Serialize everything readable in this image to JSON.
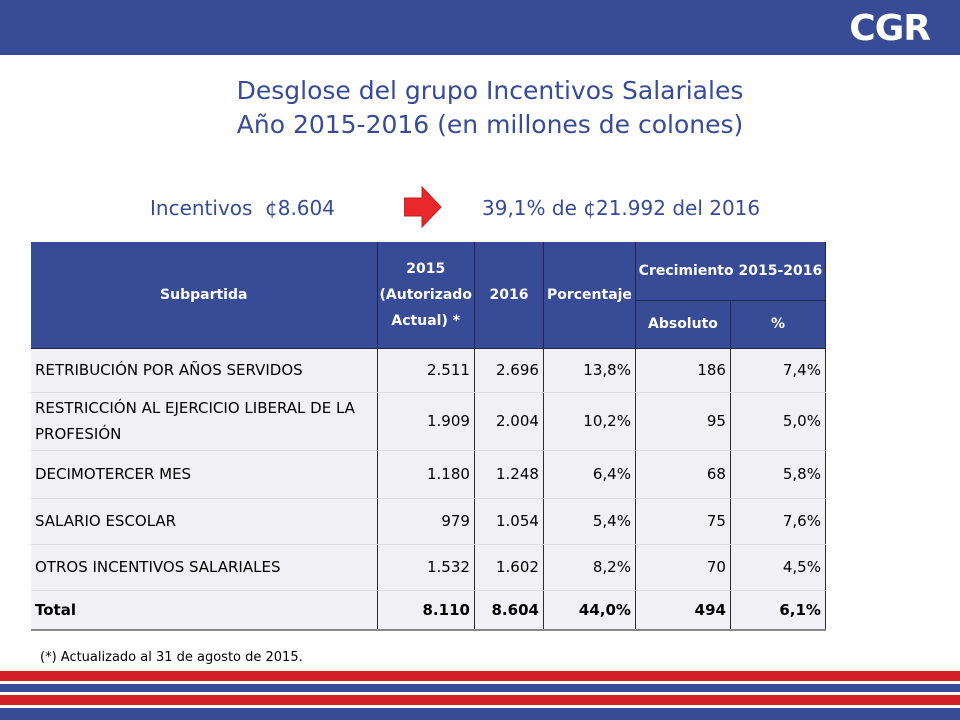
{
  "brand": {
    "logo_text": "CGR"
  },
  "title": {
    "line1": "Desglose del grupo Incentivos Salariales",
    "line2": "Año 2015-2016 (en millones de colones)"
  },
  "summary": {
    "label": "Incentivos",
    "value": "¢8.604",
    "description": "39,1% de ¢21.992 del 2016",
    "arrow_icon": "right-arrow-icon",
    "arrow_color": "#e8282a"
  },
  "table": {
    "headers": {
      "subpartida": "Subpartida",
      "y2015": "2015 (Autorizado Actual) *",
      "y2016": "2016",
      "porcentaje": "Porcentaje",
      "crecimiento": "Crecimiento 2015-2016",
      "absoluto": "Absoluto",
      "pct": "%"
    },
    "rows": [
      {
        "name": "RETRIBUCIÓN POR AÑOS SERVIDOS",
        "y2015": "2.511",
        "y2016": "2.696",
        "porcentaje": "13,8%",
        "absoluto": "186",
        "pct": "7,4%"
      },
      {
        "name": "RESTRICCIÓN AL EJERCICIO LIBERAL DE LA PROFESIÓN",
        "y2015": "1.909",
        "y2016": "2.004",
        "porcentaje": "10,2%",
        "absoluto": "95",
        "pct": "5,0%"
      },
      {
        "name": "DECIMOTERCER MES",
        "y2015": "1.180",
        "y2016": "1.248",
        "porcentaje": "6,4%",
        "absoluto": "68",
        "pct": "5,8%"
      },
      {
        "name": "SALARIO ESCOLAR",
        "y2015": "979",
        "y2016": "1.054",
        "porcentaje": "5,4%",
        "absoluto": "75",
        "pct": "7,6%"
      },
      {
        "name": "OTROS INCENTIVOS SALARIALES",
        "y2015": "1.532",
        "y2016": "1.602",
        "porcentaje": "8,2%",
        "absoluto": "70",
        "pct": "4,5%"
      }
    ],
    "total": {
      "name": "Total",
      "y2015": "8.110",
      "y2016": "8.604",
      "porcentaje": "44,0%",
      "absoluto": "494",
      "pct": "6,1%"
    }
  },
  "footnote": "(*) Actualizado al 31 de agosto de 2015.",
  "colors": {
    "primary": "#384b97",
    "stripe_red": "#d32027",
    "stripe_blue": "#384b97"
  }
}
